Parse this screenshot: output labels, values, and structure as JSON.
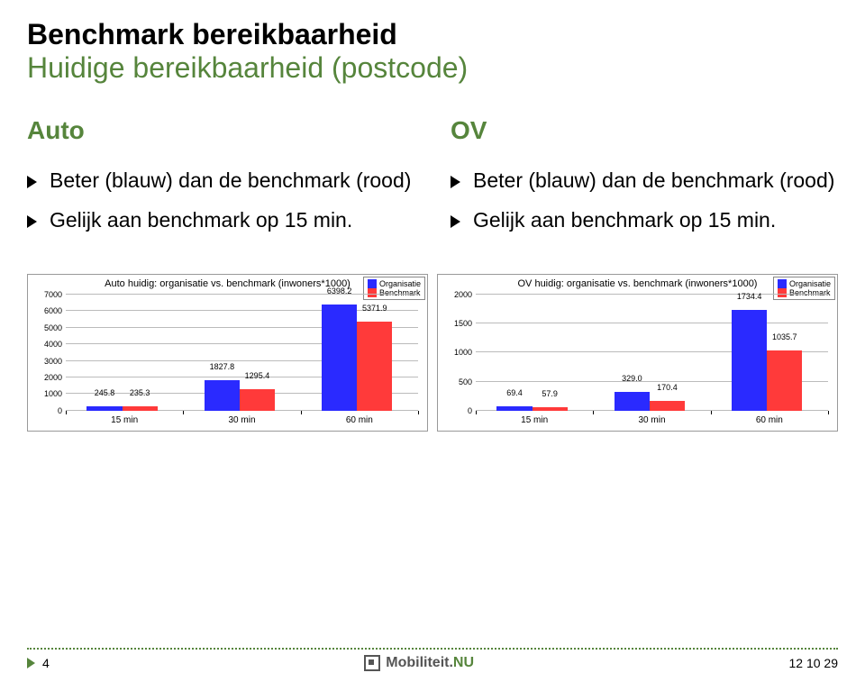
{
  "title_line1": "Benchmark bereikbaarheid",
  "title_line2": "Huidige bereikbaarheid (postcode)",
  "accent_green": "#56853c",
  "columns": {
    "left": {
      "heading": "Auto",
      "bullets": [
        "Beter (blauw) dan de benchmark (rood)",
        "Gelijk aan benchmark op 15 min."
      ]
    },
    "right": {
      "heading": "OV",
      "bullets": [
        "Beter (blauw) dan de benchmark (rood)",
        "Gelijk aan benchmark op 15 min."
      ]
    }
  },
  "legend_labels": [
    "Organisatie",
    "Benchmark"
  ],
  "series_colors": {
    "organisatie": "#2a2aff",
    "benchmark": "#ff3a3a"
  },
  "grid_color": "#bbbbbb",
  "chart_border": "#999999",
  "chart_left": {
    "title": "Auto huidig: organisatie vs. benchmark (inwoners*1000)",
    "ymin": 0,
    "ymax": 7000,
    "ystep": 1000,
    "categories": [
      "15 min",
      "30 min",
      "60 min"
    ],
    "organisatie": [
      245.8,
      1827.8,
      6398.2
    ],
    "benchmark": [
      235.3,
      1295.4,
      5371.9
    ],
    "value_labels_org": [
      "245.8",
      "1827.8",
      "6398.2"
    ],
    "value_labels_bench": [
      "235.3",
      "1295.4",
      "5371.9"
    ]
  },
  "chart_right": {
    "title": "OV huidig: organisatie vs. benchmark (inwoners*1000)",
    "ymin": 0,
    "ymax": 2000,
    "ystep": 500,
    "categories": [
      "15 min",
      "30 min",
      "60 min"
    ],
    "organisatie": [
      69.4,
      329.0,
      1734.4
    ],
    "benchmark": [
      57.9,
      170.4,
      1035.7
    ],
    "value_labels_org": [
      "69.4",
      "329.0",
      "1734.4"
    ],
    "value_labels_bench": [
      "57.9",
      "170.4",
      "1035.7"
    ]
  },
  "footer": {
    "page_number": "4",
    "date": "12 10 29",
    "logo_text_1": "Mobiliteit.",
    "logo_text_2": "NU",
    "logo_color_1": "#555555",
    "logo_color_2": "#56853c"
  }
}
